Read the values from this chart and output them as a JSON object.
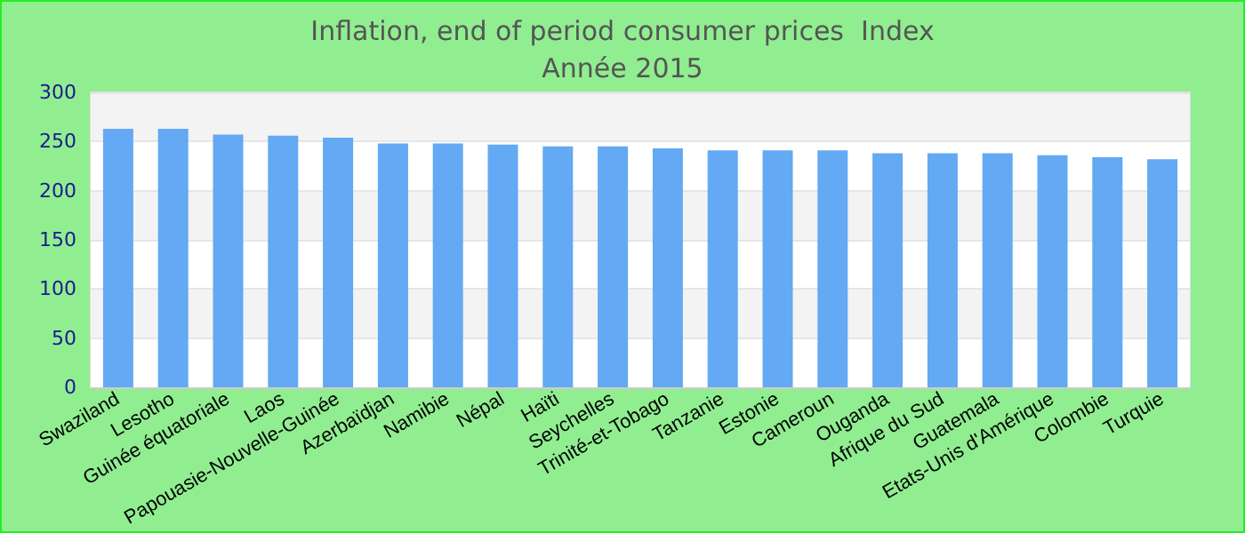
{
  "chart_data": {
    "type": "bar",
    "title": "Inflation, end of period consumer prices  Index",
    "subtitle": "Année 2015",
    "categories": [
      "Swaziland",
      "Lesotho",
      "Guinée équatoriale",
      "Laos",
      "Papouasie-Nouvelle-Guinée",
      "Azerbaïdjan",
      "Namibie",
      "Népal",
      "Haïti",
      "Seychelles",
      "Trinité-et-Tobago",
      "Tanzanie",
      "Estonie",
      "Cameroun",
      "Ouganda",
      "Afrique du Sud",
      "Guatemala",
      "Etats-Unis d'Amérique",
      "Colombie",
      "Turquie"
    ],
    "values": [
      263,
      263,
      257,
      256,
      254,
      248,
      248,
      247,
      245,
      245,
      243,
      241,
      241,
      241,
      238,
      238,
      238,
      236,
      234,
      232
    ],
    "color": "#63a9f4",
    "ylim": [
      0,
      300
    ],
    "yticks": [
      0,
      50,
      100,
      150,
      200,
      250,
      300
    ],
    "grid": "y"
  }
}
